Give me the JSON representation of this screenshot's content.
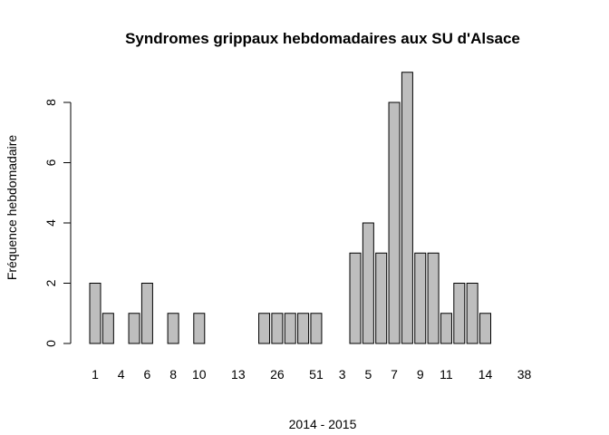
{
  "chart_data": {
    "type": "bar",
    "title": "Syndromes grippaux hebdomadaires aux SU d'Alsace",
    "xlabel": "2014 - 2015",
    "ylabel": "Fréquence hebdomadaire",
    "ylim": [
      0,
      9
    ],
    "y_ticks": [
      0,
      2,
      4,
      6,
      8
    ],
    "grid": false,
    "bar_color": "#bebebe",
    "bar_edge_color": "#000000",
    "x_tick_labels": [
      "1",
      "4",
      "6",
      "8",
      "10",
      "13",
      "26",
      "51",
      "3",
      "5",
      "7",
      "9",
      "11",
      "14",
      "38"
    ],
    "x_tick_bar_index": [
      0,
      2,
      4,
      6,
      8,
      11,
      14,
      17,
      19,
      21,
      23,
      25,
      27,
      30,
      33
    ],
    "categories": [
      "",
      "",
      "",
      "",
      "",
      "",
      "",
      "",
      "",
      "",
      "",
      "",
      "",
      "",
      "",
      "",
      "",
      "",
      "",
      "",
      "",
      "",
      "",
      "",
      "",
      "",
      "",
      "",
      "",
      "",
      "",
      "",
      "",
      ""
    ],
    "values": [
      2,
      1,
      0,
      1,
      2,
      0,
      1,
      0,
      1,
      0,
      0,
      0,
      0,
      1,
      1,
      1,
      1,
      1,
      0,
      0,
      3,
      4,
      3,
      8,
      9,
      3,
      3,
      1,
      2,
      2,
      1,
      0,
      0,
      0
    ]
  }
}
